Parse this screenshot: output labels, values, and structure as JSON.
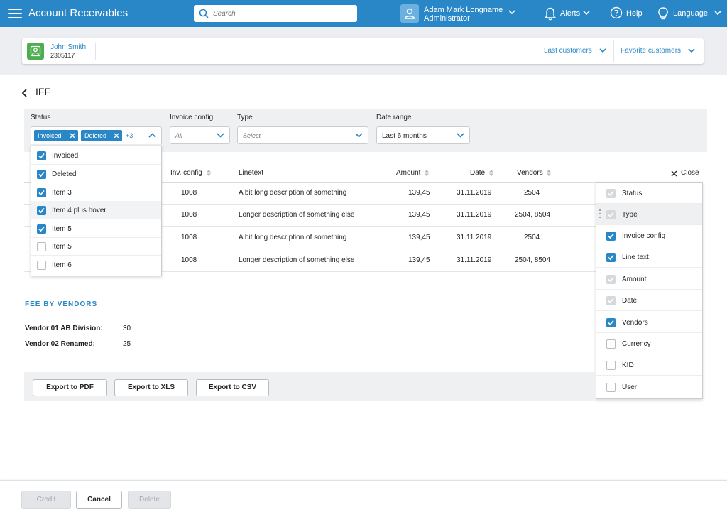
{
  "header": {
    "title": "Account Receivables",
    "search_placeholder": "Search",
    "user_name": "Adam Mark Longname",
    "user_role": "Administrator",
    "alerts_label": "Alerts",
    "help_label": "Help",
    "language_label": "Language",
    "brand_color": "#2a87c7"
  },
  "customer": {
    "name": "John Smith",
    "id": "2305117",
    "last_customers_label": "Last customers",
    "favorite_customers_label": "Favorite customers"
  },
  "page": {
    "title": "IFF"
  },
  "filters": {
    "status_label": "Status",
    "status_chips": [
      "Invoiced",
      "Deleted"
    ],
    "status_more": "+3",
    "invoice_config_label": "Invoice config",
    "invoice_config_placeholder": "All",
    "type_label": "Type",
    "type_placeholder": "Select",
    "date_range_label": "Date range",
    "date_range_value": "Last 6 months"
  },
  "status_options": [
    {
      "label": "Invoiced",
      "checked": true
    },
    {
      "label": "Deleted",
      "checked": true
    },
    {
      "label": "Item 3",
      "checked": true
    },
    {
      "label": "Item 4 plus hover",
      "checked": true,
      "hover": true
    },
    {
      "label": "Item 5",
      "checked": true
    },
    {
      "label": "Item 5",
      "checked": false
    },
    {
      "label": "Item 6",
      "checked": false
    }
  ],
  "table": {
    "headers": {
      "inv_config": "Inv. config",
      "linetext": "Linetext",
      "amount": "Amount",
      "date": "Date",
      "vendors": "Vendors"
    },
    "rows": [
      {
        "inv_config": "1008",
        "linetext": "A bit long description of something",
        "amount": "139,45",
        "date": "31.11.2019",
        "vendors": "2504"
      },
      {
        "inv_config": "1008",
        "linetext": "Longer description of something else",
        "amount": "139,45",
        "date": "31.11.2019",
        "vendors": "2504, 8504"
      },
      {
        "inv_config": "1008",
        "linetext": "A bit long description of something",
        "amount": "139,45",
        "date": "31.11.2019",
        "vendors": "2504"
      },
      {
        "inv_config": "1008",
        "linetext": "Longer description of something else",
        "amount": "139,45",
        "date": "31.11.2019",
        "vendors": "2504, 8504"
      }
    ]
  },
  "column_panel": {
    "close_label": "Close",
    "columns": [
      {
        "label": "Status",
        "state": "disabled"
      },
      {
        "label": "Type",
        "state": "disabled",
        "hover": true
      },
      {
        "label": "Invoice config",
        "state": "checked"
      },
      {
        "label": "Line text",
        "state": "checked"
      },
      {
        "label": "Amount",
        "state": "disabled"
      },
      {
        "label": "Date",
        "state": "disabled"
      },
      {
        "label": "Vendors",
        "state": "checked"
      },
      {
        "label": "Currency",
        "state": "unchecked"
      },
      {
        "label": "KID",
        "state": "unchecked"
      },
      {
        "label": "User",
        "state": "unchecked"
      }
    ]
  },
  "fee_section": {
    "title": "FEE BY VENDORS",
    "items": [
      {
        "label": "Vendor 01 AB Division:",
        "value": "30"
      },
      {
        "label": "Vendor 02 Renamed:",
        "value": "25"
      }
    ]
  },
  "export": {
    "pdf": "Export to PDF",
    "xls": "Export to XLS",
    "csv": "Export to CSV"
  },
  "footer": {
    "credit": "Credit",
    "cancel": "Cancel",
    "delete": "Delete"
  }
}
